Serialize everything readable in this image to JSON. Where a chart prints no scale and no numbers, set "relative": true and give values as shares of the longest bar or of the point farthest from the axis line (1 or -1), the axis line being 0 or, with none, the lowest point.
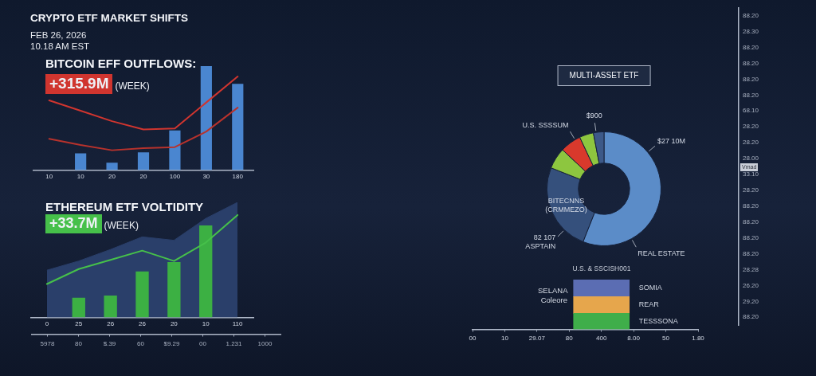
{
  "chart_data": [
    {
      "type": "bar",
      "title": "BITCOIN EFF OUTFLOWS:",
      "subtitle": "+315.9M (WEEK)",
      "annotations": [
        "CRYPTO ETF MARKET SHIFTS",
        "FEB 26, 2026",
        "10.18 AM EST"
      ],
      "categories": [
        "10",
        "10",
        "20",
        "20",
        "100",
        "30",
        "180"
      ],
      "relative": true,
      "series": [
        {
          "color": "#4a86d0",
          "values": [
            null,
            0.16,
            0.07,
            0.17,
            0.38,
            1,
            0.83
          ]
        },
        {
          "type": "line",
          "color": "#d0352f",
          "values": [
            0.67,
            0.57,
            0.47,
            0.39,
            0.4,
            0.65,
            0.9
          ]
        },
        {
          "type": "line",
          "color": "#b8322c",
          "values": [
            0.3,
            0.24,
            0.19,
            0.21,
            0.22,
            0.37,
            0.6
          ]
        }
      ]
    },
    {
      "type": "bar",
      "title": "ETHEREUM ETF VOLTIDITY",
      "subtitle": "+33.7M (WEEK)",
      "categories": [
        "0",
        "25",
        "26",
        "26",
        "20",
        "10",
        "110"
      ],
      "relative": true,
      "series": [
        {
          "type": "area",
          "color": "#2a3f6a",
          "values": [
            0.41,
            0.49,
            0.59,
            0.7,
            0.67,
            0.86,
            1
          ]
        },
        {
          "color": "#3cb043",
          "values": [
            null,
            0.17,
            0.19,
            0.4,
            0.48,
            0.8,
            null
          ]
        },
        {
          "type": "line",
          "color": "#46c04a",
          "values": [
            0.29,
            0.42,
            0.5,
            0.58,
            0.49,
            0.65,
            0.89
          ]
        }
      ]
    },
    {
      "type": "donut",
      "title": "MULTI-ASSET ETF",
      "categories": [
        "REAL ESTATE",
        "BITECNNS (CRMMEZO)",
        null,
        "U.S. SSSSUM",
        null,
        null
      ],
      "values": [
        56,
        25,
        6,
        6,
        4,
        3
      ],
      "colors": [
        "#5b8cc8",
        "#35507c",
        "#8dc63f",
        "#d9392c",
        "#8dc63f",
        "#3d5988"
      ],
      "annotations": [
        "$27 10M",
        "82 107\nASPTAIN",
        "$900"
      ]
    },
    {
      "type": "bar",
      "title": "U.S. & SSCISH001",
      "categories": [
        "00",
        "10",
        "29.07",
        "80",
        "400",
        "8.00",
        "50",
        "1.80"
      ],
      "stacked": true,
      "relative": true,
      "annotations": [
        "SELANA Coleore"
      ],
      "series": [
        {
          "name": "TESSSONA",
          "color": "#3fae4a",
          "values": [
            null,
            null,
            null,
            null,
            0.32,
            null,
            null,
            null
          ]
        },
        {
          "name": "REAR",
          "color": "#e6a64c",
          "values": [
            null,
            null,
            null,
            null,
            0.34,
            null,
            null,
            null
          ]
        },
        {
          "name": "SOMIA",
          "color": "#5b6db3",
          "values": [
            null,
            null,
            null,
            null,
            0.34,
            null,
            null,
            null
          ]
        }
      ]
    },
    {
      "type": "other",
      "categories": [
        "5978",
        "80",
        "$.39",
        "60",
        "$9.29",
        "00",
        "1.231",
        "1000"
      ]
    },
    {
      "type": "other",
      "y_categories": [
        "88.20",
        "28.30",
        "88.20",
        "88.20",
        "88.20",
        "88.20",
        "68.10",
        "28.20",
        "28.20",
        "28.00",
        "33.10",
        "28.20",
        "88.20",
        "88.20",
        "88.20",
        "88.20",
        "28.28",
        "26.20",
        "29.20",
        "88.20"
      ],
      "annotations": [
        "Vmad"
      ]
    }
  ]
}
